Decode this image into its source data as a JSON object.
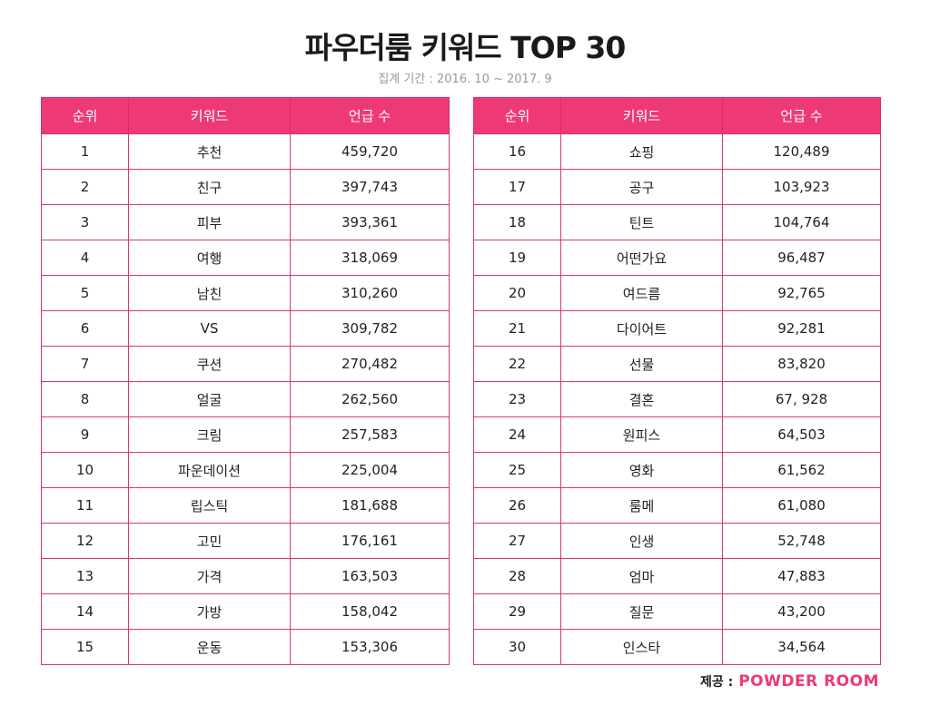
{
  "title": "파우더룸 키워드 TOP 30",
  "subtitle": "집계 기간 : 2016. 10 ~ 2017. 9",
  "headers": {
    "rank": "순위",
    "keyword": "키워드",
    "mentions": "언급 수"
  },
  "left_rows": [
    {
      "rank": "1",
      "keyword": "추천",
      "mentions": "459,720"
    },
    {
      "rank": "2",
      "keyword": "친구",
      "mentions": "397,743"
    },
    {
      "rank": "3",
      "keyword": "피부",
      "mentions": "393,361"
    },
    {
      "rank": "4",
      "keyword": "여행",
      "mentions": "318,069"
    },
    {
      "rank": "5",
      "keyword": "남친",
      "mentions": "310,260"
    },
    {
      "rank": "6",
      "keyword": "VS",
      "mentions": "309,782"
    },
    {
      "rank": "7",
      "keyword": "쿠션",
      "mentions": "270,482"
    },
    {
      "rank": "8",
      "keyword": "얼굴",
      "mentions": "262,560"
    },
    {
      "rank": "9",
      "keyword": "크림",
      "mentions": "257,583"
    },
    {
      "rank": "10",
      "keyword": "파운데이션",
      "mentions": "225,004"
    },
    {
      "rank": "11",
      "keyword": "립스틱",
      "mentions": "181,688"
    },
    {
      "rank": "12",
      "keyword": "고민",
      "mentions": "176,161"
    },
    {
      "rank": "13",
      "keyword": "가격",
      "mentions": "163,503"
    },
    {
      "rank": "14",
      "keyword": "가방",
      "mentions": "158,042"
    },
    {
      "rank": "15",
      "keyword": "운동",
      "mentions": "153,306"
    }
  ],
  "right_rows": [
    {
      "rank": "16",
      "keyword": "쇼핑",
      "mentions": "120,489"
    },
    {
      "rank": "17",
      "keyword": "공구",
      "mentions": "103,923"
    },
    {
      "rank": "18",
      "keyword": "틴트",
      "mentions": "104,764"
    },
    {
      "rank": "19",
      "keyword": "어떤가요",
      "mentions": "96,487"
    },
    {
      "rank": "20",
      "keyword": "여드름",
      "mentions": "92,765"
    },
    {
      "rank": "21",
      "keyword": "다이어트",
      "mentions": "92,281"
    },
    {
      "rank": "22",
      "keyword": "선물",
      "mentions": "83,820"
    },
    {
      "rank": "23",
      "keyword": "결혼",
      "mentions": "67, 928"
    },
    {
      "rank": "24",
      "keyword": "원피스",
      "mentions": "64,503"
    },
    {
      "rank": "25",
      "keyword": "영화",
      "mentions": "61,562"
    },
    {
      "rank": "26",
      "keyword": "룸메",
      "mentions": "61,080"
    },
    {
      "rank": "27",
      "keyword": "인생",
      "mentions": "52,748"
    },
    {
      "rank": "28",
      "keyword": "엄마",
      "mentions": "47,883"
    },
    {
      "rank": "29",
      "keyword": "질문",
      "mentions": "43,200"
    },
    {
      "rank": "30",
      "keyword": "인스타",
      "mentions": "34,564"
    }
  ],
  "credit": {
    "label": "제공 :",
    "brand": "POWDER ROOM"
  },
  "colors": {
    "header_bg": "#ee3a74",
    "border": "#d6386d",
    "brand": "#ee3a74"
  }
}
